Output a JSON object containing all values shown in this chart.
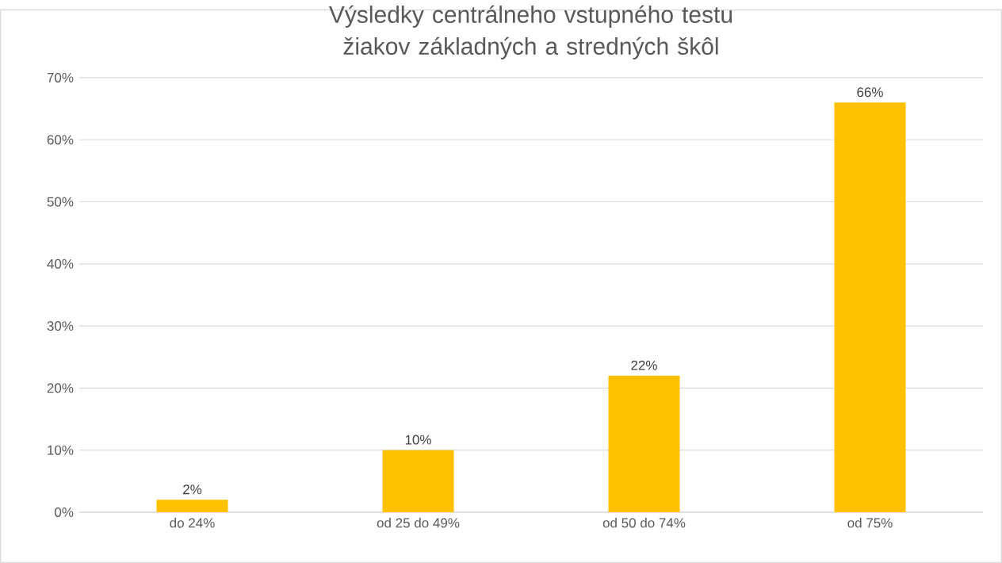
{
  "chart_data": {
    "type": "bar",
    "title": "Výsledky centrálneho vstupného testu žiakov základných a stredných škôl",
    "categories": [
      "do 24%",
      "od 25 do 49%",
      "od 50 do 74%",
      "od 75%"
    ],
    "values": [
      2,
      10,
      22,
      66
    ],
    "value_labels": [
      "2%",
      "10%",
      "22%",
      "66%"
    ],
    "color": "#ffc000",
    "ylim": [
      0,
      70
    ],
    "yticks": [
      {
        "value": 0,
        "label": "0%"
      },
      {
        "value": 10,
        "label": "10%"
      },
      {
        "value": 20,
        "label": "20%"
      },
      {
        "value": 30,
        "label": "30%"
      },
      {
        "value": 40,
        "label": "40%"
      },
      {
        "value": 50,
        "label": "50%"
      },
      {
        "value": 60,
        "label": "60%"
      },
      {
        "value": 70,
        "label": "70%"
      }
    ],
    "grid": "y"
  }
}
